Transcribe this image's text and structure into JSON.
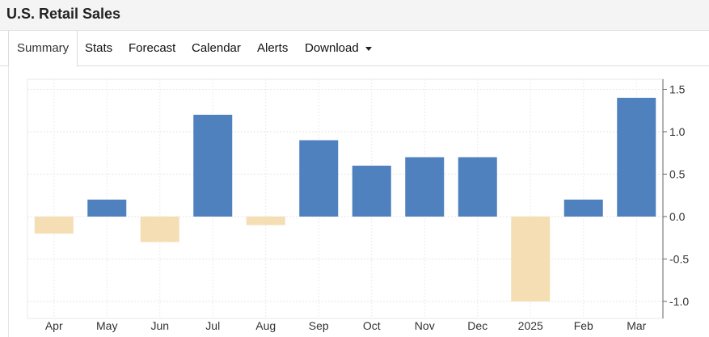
{
  "header": {
    "title": "U.S. Retail Sales"
  },
  "tabs": [
    {
      "label": "Summary",
      "active": true
    },
    {
      "label": "Stats"
    },
    {
      "label": "Forecast"
    },
    {
      "label": "Calendar"
    },
    {
      "label": "Alerts"
    },
    {
      "label": "Download",
      "dropdown": true
    }
  ],
  "chart_data": {
    "type": "bar",
    "categories": [
      "Apr",
      "May",
      "Jun",
      "Jul",
      "Aug",
      "Sep",
      "Oct",
      "Nov",
      "Dec",
      "2025",
      "Feb",
      "Mar"
    ],
    "values": [
      -0.2,
      0.2,
      -0.3,
      1.2,
      -0.1,
      0.9,
      0.6,
      0.7,
      0.7,
      -1.0,
      0.2,
      1.4
    ],
    "colors": {
      "positive": "#4e81bd",
      "negative": "#f5deb3"
    },
    "yticks": [
      "1.5",
      "1.0",
      "0.5",
      "0.0",
      "-0.5",
      "-1.0"
    ],
    "ylim": [
      -1.1,
      1.6
    ],
    "y_axis_side": "right",
    "grid": true
  }
}
